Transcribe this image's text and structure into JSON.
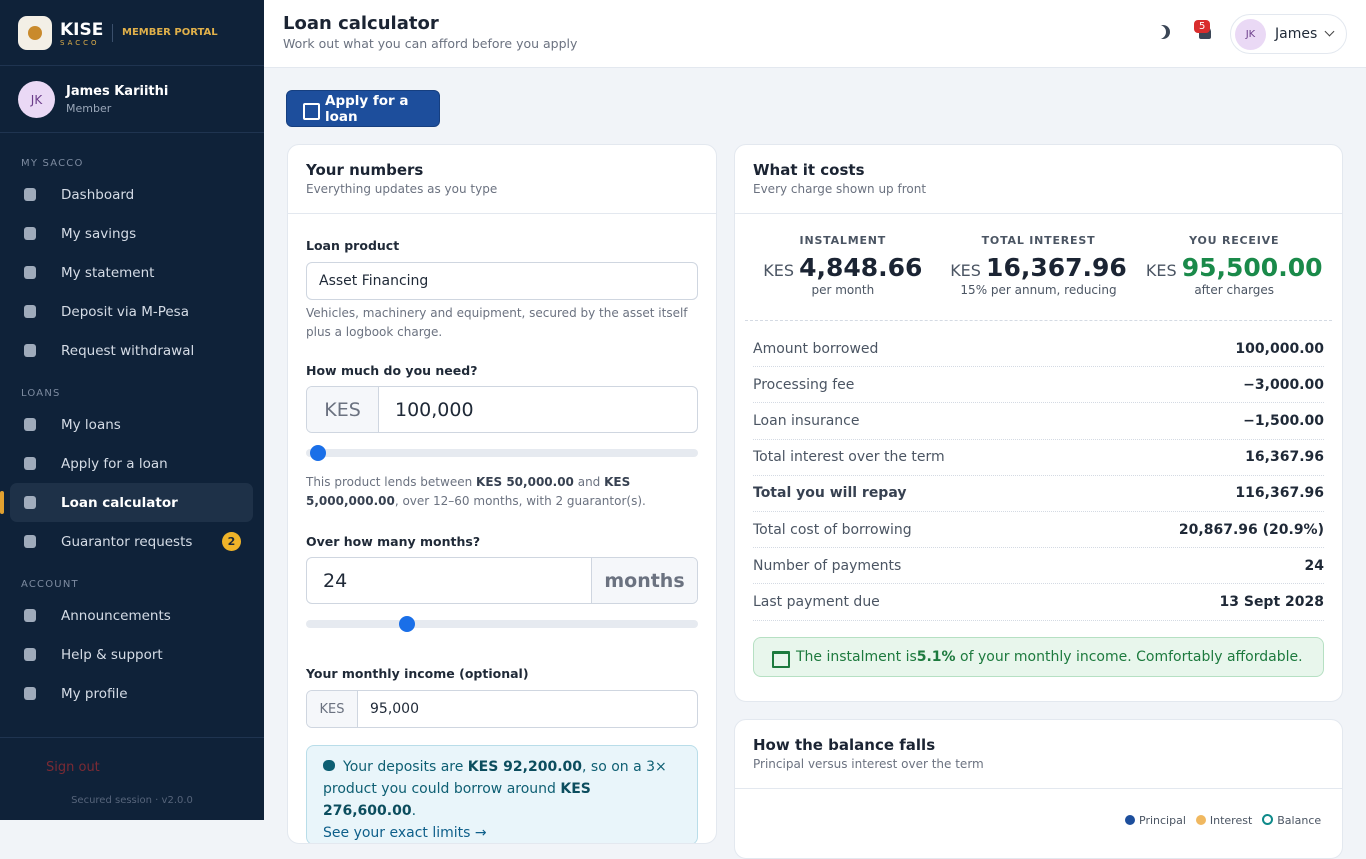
{
  "brand": {
    "name": "KISE",
    "sub": "SACCO",
    "portal": "MEMBER PORTAL"
  },
  "user": {
    "initials": "JK",
    "name": "James Kariithi",
    "role": "Member"
  },
  "nav": [
    {
      "heading": "MY SACCO",
      "items": [
        {
          "label": "Dashboard"
        },
        {
          "label": "My savings"
        },
        {
          "label": "My statement"
        },
        {
          "label": "Deposit via M-Pesa"
        },
        {
          "label": "Request withdrawal"
        }
      ]
    },
    {
      "heading": "LOANS",
      "items": [
        {
          "label": "My loans"
        },
        {
          "label": "Apply for a loan"
        },
        {
          "label": "Loan calculator"
        },
        {
          "label": "Guarantor requests",
          "badge": "2"
        }
      ]
    },
    {
      "heading": "ACCOUNT",
      "items": [
        {
          "label": "Announcements"
        },
        {
          "label": "Help & support"
        },
        {
          "label": "My profile"
        }
      ]
    }
  ],
  "sidebar_footer": {
    "signout": "Sign out",
    "session": "Secured session · v2.0.0"
  },
  "header": {
    "title": "Loan calculator",
    "subtitle": "Work out what you can afford before you apply",
    "notifications": "5",
    "user_initials": "JK",
    "user_name": "James"
  },
  "apply_button": "Apply for a loan",
  "numbers_card": {
    "title": "Your numbers",
    "subtitle": "Everything updates as you type",
    "product_label": "Loan product",
    "product": "Asset Financing",
    "product_help": "Vehicles, machinery and equipment, secured by the asset itself plus a logbook charge.",
    "amount_label": "How much do you need?",
    "amount_prefix": "KES",
    "amount": "100,000",
    "range_help": [
      "This product lends between ",
      "KES 50,000.00",
      " and ",
      "KES 5,000,000.00",
      ", over 12–60 months, with 2 guarantor(s)."
    ],
    "months_label": "Over how many months?",
    "months": "24",
    "months_suffix": "months",
    "income_label": "Your monthly income (optional)",
    "income_prefix": "KES",
    "income": "95,000",
    "deposit_note": [
      "Your deposits are ",
      "KES 92,200.00",
      ", so on a 3× product you could borrow around ",
      "KES 276,600.00",
      "."
    ],
    "deposit_link": "See your exact limits →"
  },
  "costs_card": {
    "title": "What it costs",
    "subtitle": "Every charge shown up front",
    "stats": [
      {
        "label": "INSTALMENT",
        "currency": "KES",
        "value": "4,848.66",
        "note": "per month"
      },
      {
        "label": "TOTAL INTEREST",
        "currency": "KES",
        "value": "16,367.96",
        "note": "15% per annum, reducing"
      },
      {
        "label": "YOU RECEIVE",
        "currency": "KES",
        "value": "95,500.00",
        "note": "after charges"
      }
    ],
    "rows": [
      {
        "label": "Amount borrowed",
        "value": "100,000.00"
      },
      {
        "label": "Processing fee",
        "value": "−3,000.00"
      },
      {
        "label": "Loan insurance",
        "value": "−1,500.00"
      },
      {
        "label": "Total interest over the term",
        "value": "16,367.96"
      },
      {
        "label": "Total you will repay",
        "value": "116,367.96"
      },
      {
        "label": "Total cost of borrowing",
        "value": "20,867.96 (20.9%)"
      },
      {
        "label": "Number of payments",
        "value": "24"
      },
      {
        "label": "Last payment due",
        "value": "13 Sept 2028"
      }
    ],
    "affordability": [
      "The instalment is ",
      "5.1%",
      " of your monthly income. Comfortably affordable."
    ]
  },
  "balance_card": {
    "title": "How the balance falls",
    "subtitle": "Principal versus interest over the term",
    "legend": [
      "Principal",
      "Interest",
      "Balance"
    ]
  }
}
